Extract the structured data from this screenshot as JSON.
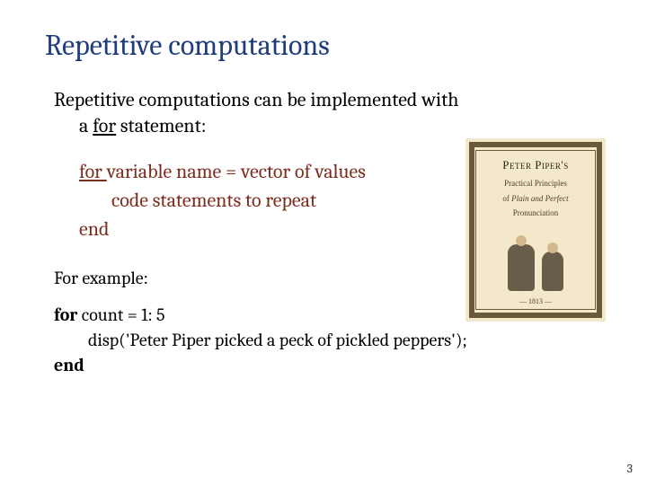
{
  "title": {
    "text": "Repetitive computations",
    "color": "#1f3d7a",
    "fontsize": 32
  },
  "intro": {
    "line1": "Repetitive computations can be implemented with",
    "line2_prefix": "a ",
    "line2_underlined": "for",
    "line2_suffix": " statement:"
  },
  "syntax": {
    "line1_prefix": "for ",
    "line1_rest": "variable name = vector of values",
    "line2": "code statements to repeat",
    "line3": "end",
    "color": "#7b2d1e"
  },
  "example_label": "For example:",
  "code": {
    "line1_kw": "for",
    "line1_rest": " count = 1: 5",
    "line2": "disp('Peter Piper picked a peck of pickled peppers');",
    "line3": "end"
  },
  "book": {
    "title": "Peter Piper's",
    "sub1": "Practical Principles",
    "sub2_prefix": "of ",
    "sub2_em": "Plain and Perfect",
    "sub3": "Pronunciation",
    "year": "— 1813 —",
    "bg_color": "#f3e8cc",
    "border_color": "#6b5a3a"
  },
  "page_number": "3",
  "colors": {
    "title": "#1f3d7a",
    "syntax": "#7b2d1e",
    "body": "#000000"
  }
}
